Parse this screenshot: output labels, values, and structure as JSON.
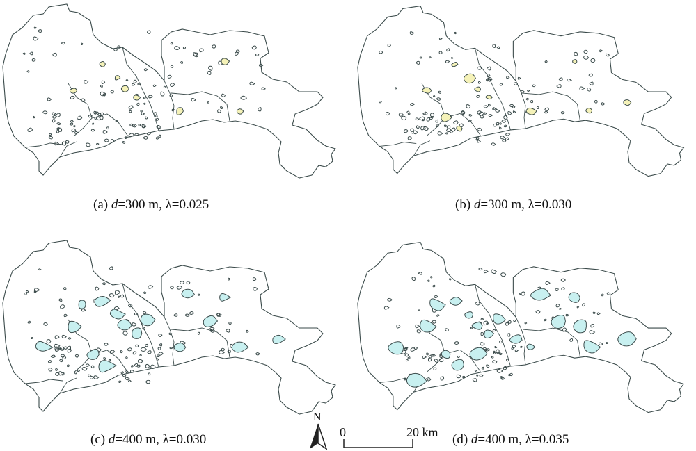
{
  "panels": [
    {
      "caption_prefix": "(a) ",
      "d_symbol": "d",
      "caption_rest": "=300 m, λ=0.025",
      "fill": "#f5f2b8",
      "variant": 1
    },
    {
      "caption_prefix": "(b) ",
      "d_symbol": "d",
      "caption_rest": "=300 m, λ=0.030",
      "fill": "#f5f2b8",
      "variant": 2
    },
    {
      "caption_prefix": "(c) ",
      "d_symbol": "d",
      "caption_rest": "=400 m, λ=0.030",
      "fill": "#c8f0f0",
      "variant": 3
    },
    {
      "caption_prefix": "(d) ",
      "d_symbol": "d",
      "caption_rest": "=400 m, λ=0.035",
      "fill": "#c8f0f0",
      "variant": 4
    }
  ],
  "north_arrow": {
    "label": "N",
    "icon": "north-arrow-icon"
  },
  "scale_bar": {
    "start_label": "0",
    "end_label": "20 km"
  },
  "colors": {
    "outline": "#3a4a4a",
    "boundary_fill": "#ffffff",
    "cluster_low": "#f5f2b8",
    "cluster_high": "#c8f0f0"
  }
}
